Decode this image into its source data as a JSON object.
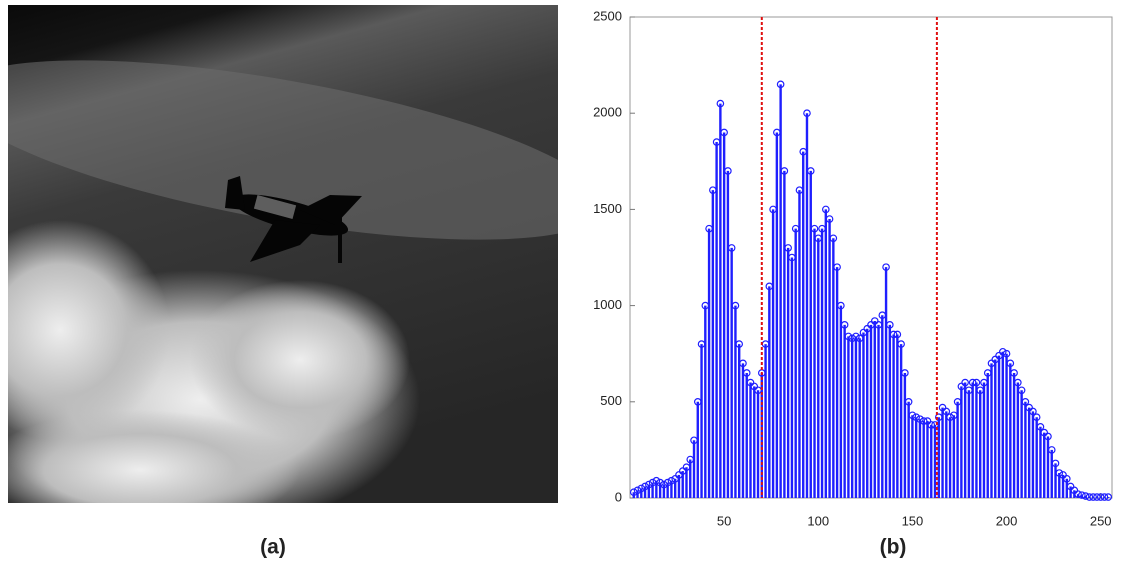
{
  "image_caption": "(a)",
  "chart_data": {
    "type": "stem",
    "caption": "(b)",
    "x": [
      2,
      4,
      6,
      8,
      10,
      12,
      14,
      16,
      18,
      20,
      22,
      24,
      26,
      28,
      30,
      32,
      34,
      36,
      38,
      40,
      42,
      44,
      46,
      48,
      50,
      52,
      54,
      56,
      58,
      60,
      62,
      64,
      66,
      68,
      70,
      72,
      74,
      76,
      78,
      80,
      82,
      84,
      86,
      88,
      90,
      92,
      94,
      96,
      98,
      100,
      102,
      104,
      106,
      108,
      110,
      112,
      114,
      116,
      118,
      120,
      122,
      124,
      126,
      128,
      130,
      132,
      134,
      136,
      138,
      140,
      142,
      144,
      146,
      148,
      150,
      152,
      154,
      156,
      158,
      160,
      162,
      164,
      166,
      168,
      170,
      172,
      174,
      176,
      178,
      180,
      182,
      184,
      186,
      188,
      190,
      192,
      194,
      196,
      198,
      200,
      202,
      204,
      206,
      208,
      210,
      212,
      214,
      216,
      218,
      220,
      222,
      224,
      226,
      228,
      230,
      232,
      234,
      236,
      238,
      240,
      242,
      244,
      246,
      248,
      250,
      252,
      254
    ],
    "values": [
      30,
      40,
      50,
      60,
      70,
      80,
      90,
      80,
      70,
      80,
      90,
      100,
      120,
      140,
      160,
      200,
      300,
      500,
      800,
      1000,
      1400,
      1600,
      1850,
      2050,
      1900,
      1700,
      1300,
      1000,
      800,
      700,
      650,
      600,
      580,
      560,
      650,
      800,
      1100,
      1500,
      1900,
      2150,
      1700,
      1300,
      1250,
      1400,
      1600,
      1800,
      2000,
      1700,
      1400,
      1350,
      1400,
      1500,
      1450,
      1350,
      1200,
      1000,
      900,
      840,
      830,
      840,
      830,
      860,
      880,
      900,
      920,
      900,
      950,
      1200,
      900,
      850,
      850,
      800,
      650,
      500,
      430,
      420,
      410,
      400,
      400,
      380,
      380,
      420,
      470,
      450,
      420,
      430,
      500,
      580,
      600,
      560,
      600,
      600,
      560,
      600,
      650,
      700,
      720,
      740,
      760,
      750,
      700,
      650,
      600,
      560,
      500,
      470,
      450,
      420,
      370,
      340,
      320,
      250,
      180,
      130,
      120,
      100,
      60,
      40,
      20,
      15,
      10,
      5,
      5,
      5,
      5,
      5,
      5
    ],
    "color": "#1f1fff",
    "xlim": [
      0,
      256
    ],
    "ylim": [
      0,
      2500
    ],
    "xticks": [
      50,
      100,
      150,
      200,
      250
    ],
    "yticks": [
      0,
      500,
      1000,
      1500,
      2000,
      2500
    ],
    "vlines": {
      "values": [
        70,
        163
      ],
      "color": "#e01010"
    }
  }
}
